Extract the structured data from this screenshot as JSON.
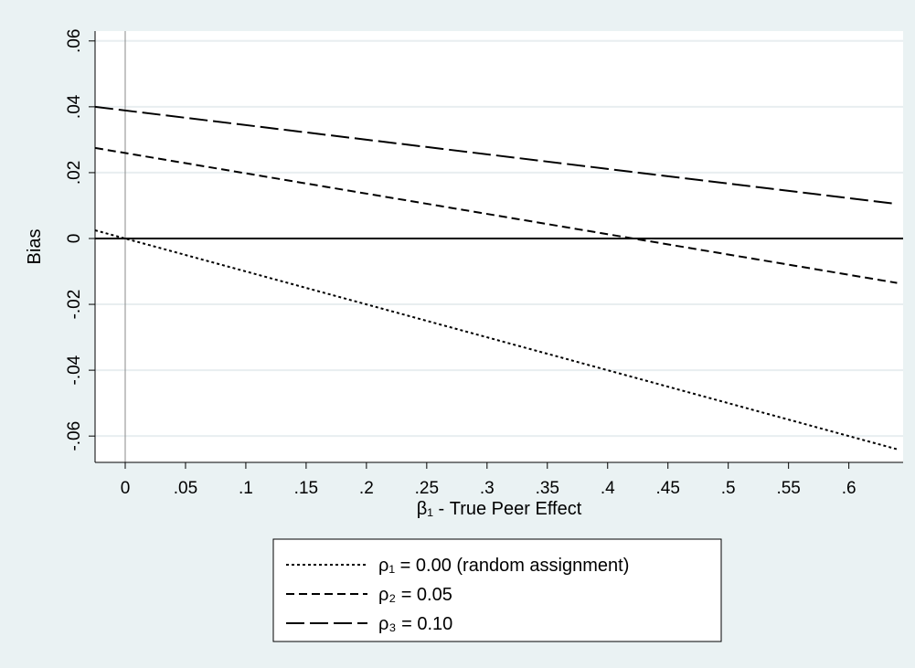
{
  "chart_data": {
    "type": "line",
    "title": "",
    "xlabel": "β₁ - True Peer Effect",
    "ylabel": "Bias",
    "xlim": [
      -0.025,
      0.645
    ],
    "ylim": [
      -0.068,
      0.063
    ],
    "x_ticks": [
      0,
      0.05,
      0.1,
      0.15,
      0.2,
      0.25,
      0.3,
      0.35,
      0.4,
      0.45,
      0.5,
      0.55,
      0.6
    ],
    "x_tick_labels": [
      "0",
      ".05",
      ".1",
      ".15",
      ".2",
      ".25",
      ".3",
      ".35",
      ".4",
      ".45",
      ".5",
      ".55",
      ".6"
    ],
    "y_ticks": [
      -0.06,
      -0.04,
      -0.02,
      0,
      0.02,
      0.04,
      0.06
    ],
    "y_tick_labels": [
      "-.06",
      "-.04",
      "-.02",
      "0",
      ".02",
      ".04",
      ".06"
    ],
    "grid": "horizontal",
    "reference_lines": {
      "y": 0,
      "x": 0
    },
    "legend_position": "bottom",
    "series": [
      {
        "name": "ρ₁ = 0.00 (random assignment)",
        "dash": "dotted",
        "x": [
          -0.025,
          0.64
        ],
        "y": [
          0.0025,
          -0.064
        ]
      },
      {
        "name": "ρ₂ = 0.05",
        "dash": "dashed",
        "x": [
          -0.025,
          0.64
        ],
        "y": [
          0.0275,
          -0.0135
        ]
      },
      {
        "name": "ρ₃ = 0.10",
        "dash": "longdash",
        "x": [
          -0.025,
          0.64
        ],
        "y": [
          0.04,
          0.0105
        ]
      }
    ],
    "colors": {
      "background": "#eaf2f3",
      "plot_background": "#ffffff",
      "grid": "#e8eef0",
      "line": "#000000"
    }
  }
}
